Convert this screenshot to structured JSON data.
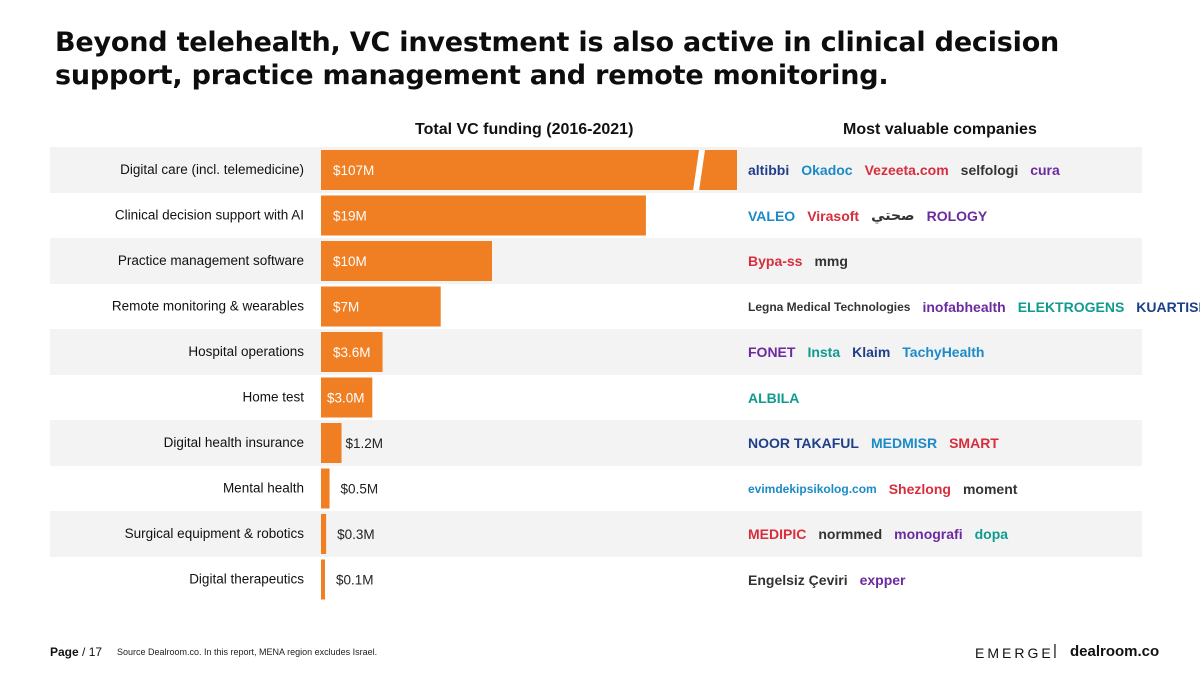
{
  "title": "Beyond telehealth, VC investment is also active in clinical decision support, practice management and remote monitoring.",
  "colors": {
    "bar": "#f07e23",
    "row_bg": "#f3f3f3",
    "accent_red": "#d72e3d"
  },
  "chart_data": {
    "type": "bar",
    "orientation": "horizontal",
    "title": "Total VC funding (2016-2021)",
    "categories": [
      "Digital care (incl. telemedicine)",
      "Clinical decision support with AI",
      "Practice management software",
      "Remote monitoring & wearables",
      "Hospital operations",
      "Home test",
      "Digital health insurance",
      "Mental health",
      "Surgical equipment & robotics",
      "Digital therapeutics"
    ],
    "values": [
      107,
      19,
      10,
      7,
      3.6,
      3.0,
      1.2,
      0.5,
      0.3,
      0.1
    ],
    "labels": [
      "$107M",
      "$19M",
      "$10M",
      "$7M",
      "$3.6M",
      "$3.0M",
      "$1.2M",
      "$0.5M",
      "$0.3M",
      "$0.1M"
    ],
    "unit": "$M",
    "axis_break_on_first_bar": true,
    "grid": false,
    "legend": "none"
  },
  "logos_header": "Most valuable companies",
  "logos": [
    [
      "altibbi",
      "Okadoc",
      "Vezeeta.com",
      "selfologi",
      "cura"
    ],
    [
      "VALEO",
      "Virasoft",
      "صحتي",
      "ROLOGY"
    ],
    [
      "Bypa-ss",
      "mmg"
    ],
    [
      "Legna Medical Technologies",
      "inofabhealth",
      "ELEKTROGENS",
      "KUARTISMED"
    ],
    [
      "FONET",
      "Insta",
      "Klaim",
      "TachyHealth"
    ],
    [
      "ALBILA"
    ],
    [
      "NOOR TAKAFUL",
      "MEDMISR",
      "SMART"
    ],
    [
      "evimdekipsikolog.com",
      "Shezlong",
      "moment"
    ],
    [
      "MEDIPIC",
      "normmed",
      "monografi",
      "dopa"
    ],
    [
      "Engelsiz Çeviri",
      "expper"
    ]
  ],
  "footer": {
    "page_label": "Page",
    "page_number": "/ 17",
    "source": "Source Dealroom.co. In this report, MENA region excludes Israel.",
    "brand_left": "EMERGE",
    "separator": "|",
    "brand_right": "dealroom.co"
  }
}
